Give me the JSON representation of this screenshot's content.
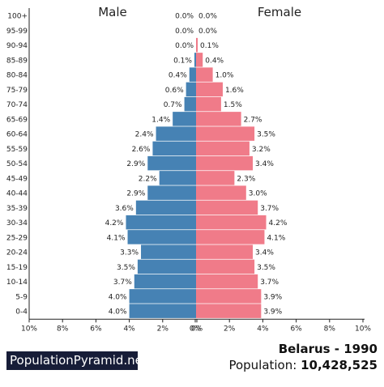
{
  "chart_data": {
    "type": "bar",
    "orientation": "horizontal",
    "categories": [
      "100+",
      "95-99",
      "90-94",
      "85-89",
      "80-84",
      "75-79",
      "70-74",
      "65-69",
      "60-64",
      "55-59",
      "50-54",
      "45-49",
      "40-44",
      "35-39",
      "30-34",
      "25-29",
      "20-24",
      "15-19",
      "10-14",
      "5-9",
      "0-4"
    ],
    "series": [
      {
        "name": "Male",
        "values": [
          0.0,
          0.0,
          0.0,
          0.1,
          0.4,
          0.6,
          0.7,
          1.4,
          2.4,
          2.6,
          2.9,
          2.2,
          2.9,
          3.6,
          4.2,
          4.1,
          3.3,
          3.5,
          3.7,
          4.0,
          4.0
        ],
        "color": "#4682b4"
      },
      {
        "name": "Female",
        "values": [
          0.0,
          0.0,
          0.1,
          0.4,
          1.0,
          1.6,
          1.5,
          2.7,
          3.5,
          3.2,
          3.4,
          2.3,
          3.0,
          3.7,
          4.2,
          4.1,
          3.4,
          3.5,
          3.7,
          3.9,
          3.9
        ],
        "color": "#f07b89"
      }
    ],
    "x_ticks": [
      "10%",
      "8%",
      "6%",
      "4%",
      "2%",
      "0%",
      "0%",
      "2%",
      "4%",
      "6%",
      "8%",
      "10%"
    ],
    "xlim": [
      -10,
      10
    ],
    "unit": "%",
    "grid": false,
    "legend": "top"
  },
  "branding": {
    "site": "PopulationPyramid.net"
  },
  "title": {
    "country": "Belarus - 1990",
    "population_label": "Population:",
    "population_value": "10,428,525"
  }
}
